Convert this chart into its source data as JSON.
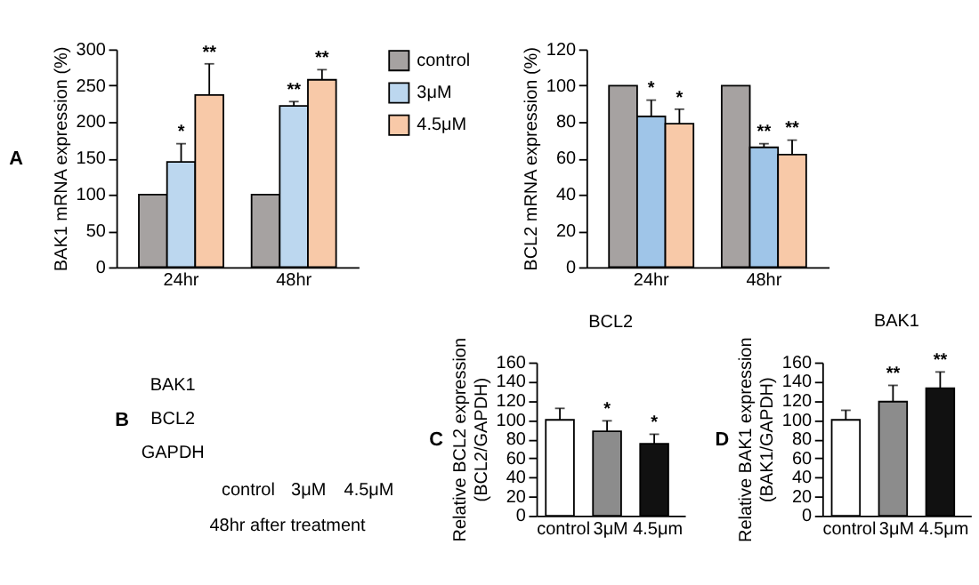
{
  "chart_data": [
    {
      "type": "bar",
      "categories": [
        "24hr",
        "48hr"
      ],
      "ylabel": "BAK1 mRNA expression (%)",
      "ylim": [
        0,
        300
      ],
      "yticks": [
        0,
        50,
        100,
        150,
        200,
        250,
        300
      ],
      "grid": false,
      "legend": "top right",
      "annotations": [
        "A"
      ],
      "series": [
        {
          "name": "control",
          "color": "#a6a2a1",
          "values": [
            100,
            100
          ]
        },
        {
          "name": "3μM",
          "color": "#bcd7ef",
          "values": [
            145,
            222
          ],
          "errors": [
            [
              145,
              170
            ],
            [
              222,
              228
            ]
          ],
          "value_labels": [
            "*",
            "**"
          ]
        },
        {
          "name": "4.5μM",
          "color": "#f8c9a8",
          "values": [
            237,
            258
          ],
          "errors": [
            [
              237,
              280
            ],
            [
              258,
              272
            ]
          ],
          "value_labels": [
            "**",
            "**"
          ]
        }
      ]
    },
    {
      "type": "bar",
      "categories": [
        "24hr",
        "48hr"
      ],
      "ylabel": "BCL2 mRNA expression (%)",
      "ylim": [
        0,
        120
      ],
      "yticks": [
        0,
        20,
        40,
        60,
        80,
        100,
        120
      ],
      "grid": false,
      "series": [
        {
          "color": "#a6a2a1",
          "values": [
            100,
            100
          ]
        },
        {
          "color": "#9fc5e8",
          "values": [
            83,
            66
          ],
          "errors": [
            [
              83,
              92
            ],
            [
              66,
              68
            ]
          ],
          "value_labels": [
            "*",
            "**"
          ]
        },
        {
          "color": "#f8c9a8",
          "values": [
            79,
            62
          ],
          "errors": [
            [
              79,
              87
            ],
            [
              62,
              70
            ]
          ],
          "value_labels": [
            "*",
            "**"
          ]
        }
      ]
    },
    {
      "type": "other",
      "categories": [
        "control",
        "3μM",
        "4.5μM"
      ],
      "y_categories": [
        "BAK1",
        "BCL2",
        "GAPDH"
      ],
      "annotations": [
        "B",
        "48hr after treatment"
      ]
    },
    {
      "type": "bar",
      "title": "BCL2",
      "categories": [
        "control",
        "3μM",
        "4.5μm"
      ],
      "ylabel": "Relative BCL2 expression\n(BCL2/GAPDH)",
      "ylim": [
        0,
        160
      ],
      "yticks": [
        0,
        20,
        40,
        60,
        80,
        100,
        120,
        140,
        160
      ],
      "grid": false,
      "annotations": [
        "C"
      ],
      "values": [
        100,
        88,
        75
      ],
      "colors": [
        "#ffffff",
        "#8c8c8c",
        "#111111"
      ],
      "errors": [
        [
          100,
          112
        ],
        [
          88,
          99
        ],
        [
          75,
          85
        ]
      ],
      "value_labels": [
        null,
        "*",
        "*"
      ]
    },
    {
      "type": "bar",
      "title": "BAK1",
      "categories": [
        "control",
        "3μM",
        "4.5μm"
      ],
      "ylabel": "Relative BAK1 expression\n(BAK1/GAPDH)",
      "ylim": [
        0,
        160
      ],
      "yticks": [
        0,
        20,
        40,
        60,
        80,
        100,
        120,
        140,
        160
      ],
      "grid": false,
      "annotations": [
        "D"
      ],
      "values": [
        100,
        119,
        133
      ],
      "colors": [
        "#ffffff",
        "#8c8c8c",
        "#111111"
      ],
      "errors": [
        [
          100,
          110
        ],
        [
          119,
          136
        ],
        [
          133,
          150
        ]
      ],
      "value_labels": [
        null,
        "**",
        "**"
      ]
    }
  ]
}
